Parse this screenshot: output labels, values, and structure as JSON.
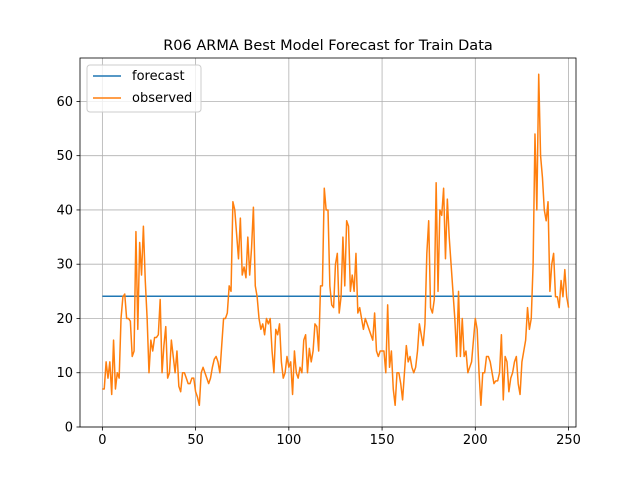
{
  "chart_data": {
    "type": "line",
    "title": "R06 ARMA Best Model Forecast for Train Data",
    "xlabel": "",
    "ylabel": "",
    "xlim": [
      -12,
      254
    ],
    "ylim": [
      0,
      68
    ],
    "x_ticks": [
      0,
      50,
      100,
      150,
      200,
      250
    ],
    "y_ticks": [
      0,
      10,
      20,
      30,
      40,
      50,
      60
    ],
    "grid": true,
    "legend": {
      "placement": "top-left",
      "entries": [
        "forecast",
        "observed"
      ]
    },
    "series": [
      {
        "name": "forecast",
        "color": "#1f77b4",
        "x": [
          0,
          241
        ],
        "y": [
          24.1,
          24.1
        ]
      },
      {
        "name": "observed",
        "color": "#ff7f0e",
        "x_start": 0,
        "x_step": 1,
        "y": [
          7,
          7,
          12,
          9,
          12,
          6,
          16,
          7,
          10,
          9,
          20,
          24,
          24.5,
          20,
          20,
          19.5,
          13,
          14,
          36,
          18,
          34,
          28,
          37,
          27,
          20,
          10,
          16,
          14,
          16.5,
          16.5,
          17,
          23.5,
          10,
          15,
          18.5,
          9,
          10,
          16,
          13,
          10,
          14,
          7.5,
          6.5,
          10,
          10,
          9,
          8,
          8,
          9,
          9,
          6.5,
          5.5,
          4,
          10,
          11,
          10,
          9,
          8,
          9,
          11,
          12.5,
          13,
          12,
          10,
          15,
          20,
          20,
          21,
          26,
          25,
          41.5,
          40,
          35.5,
          31,
          38.5,
          28,
          29.5,
          27.5,
          35,
          28,
          33,
          40.5,
          26,
          24,
          20,
          18,
          19,
          17,
          20,
          19,
          20,
          14,
          10,
          18,
          17,
          19,
          12,
          9,
          10,
          13,
          11,
          12,
          6,
          14,
          10,
          9,
          11,
          10,
          16,
          17,
          10,
          14.5,
          12,
          14,
          19,
          18.5,
          14,
          26,
          26,
          44,
          40,
          40,
          26,
          22.5,
          22,
          30,
          32,
          21,
          24,
          35,
          26,
          38,
          37,
          25,
          28,
          25,
          32,
          21,
          22,
          20,
          18,
          20,
          19,
          18,
          17,
          16,
          21,
          14,
          13,
          14,
          14,
          14,
          10,
          22.5,
          11,
          14,
          7,
          4,
          10,
          10,
          8,
          5,
          10,
          15,
          12,
          13,
          11,
          10,
          11,
          14,
          19,
          17,
          15,
          19,
          32,
          38,
          22,
          21,
          23.5,
          45,
          25,
          40,
          39,
          44,
          31,
          42,
          35,
          30,
          25,
          20,
          13,
          25,
          13,
          20,
          13,
          14,
          10,
          11,
          12,
          16,
          20,
          18,
          10,
          4,
          10,
          10,
          13,
          13,
          12,
          10,
          8,
          8.5,
          8.5,
          10,
          17,
          5,
          13,
          12,
          6.5,
          9,
          10,
          12,
          13,
          8,
          6,
          12,
          14,
          16,
          22,
          18,
          20,
          30,
          54,
          40,
          65,
          50,
          46,
          40,
          38,
          41.5,
          25,
          30,
          32,
          24,
          24,
          22,
          27,
          24,
          29,
          24,
          22
        ]
      }
    ]
  }
}
